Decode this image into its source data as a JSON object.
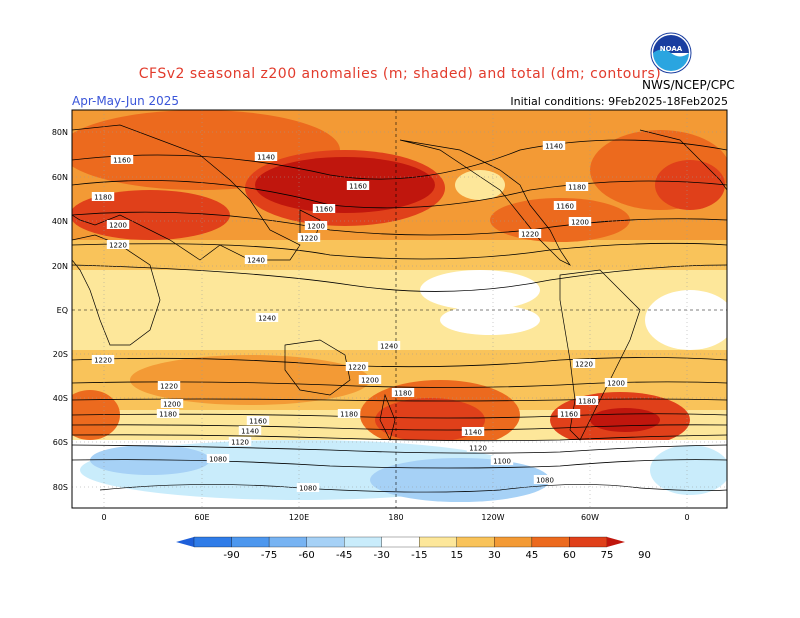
{
  "header": {
    "title": "CFSv2 seasonal z200 anomalies (m; shaded) and total (dm; contours)",
    "period": "Apr-May-Jun 2025",
    "initial_conditions": "Initial conditions: 9Feb2025-18Feb2025",
    "agency": "NWS/NCEP/CPC",
    "logo_text": "NOAA"
  },
  "map": {
    "lat_labels": [
      "80N",
      "60N",
      "40N",
      "20N",
      "EQ",
      "20S",
      "40S",
      "60S",
      "80S"
    ],
    "lon_labels": [
      "0",
      "60E",
      "120E",
      "180",
      "120W",
      "60W",
      "0"
    ],
    "contour_labels": [
      "1160",
      "1140",
      "1140",
      "1180",
      "1160",
      "1160",
      "1180",
      "1160",
      "1200",
      "1200",
      "1200",
      "1220",
      "1220",
      "1220",
      "1240",
      "1240",
      "1240",
      "1220",
      "1220",
      "1220",
      "1220",
      "1200",
      "1200",
      "1200",
      "1180",
      "1180",
      "1180",
      "1180",
      "1160",
      "1160",
      "1140",
      "1140",
      "1120",
      "1120",
      "1100",
      "1080",
      "1080",
      "1080"
    ]
  },
  "colorbar": {
    "labels": [
      "-90",
      "-75",
      "-60",
      "-45",
      "-30",
      "-15",
      "15",
      "30",
      "45",
      "60",
      "75",
      "90"
    ],
    "colors": [
      "#1e5fd9",
      "#2f7ce8",
      "#4d97ee",
      "#77b3f2",
      "#a6d1f6",
      "#c9ecfb",
      "#ffffff",
      "#fde79a",
      "#f9c35a",
      "#f39a35",
      "#ec6a1e",
      "#e0401a",
      "#c0160d"
    ]
  }
}
